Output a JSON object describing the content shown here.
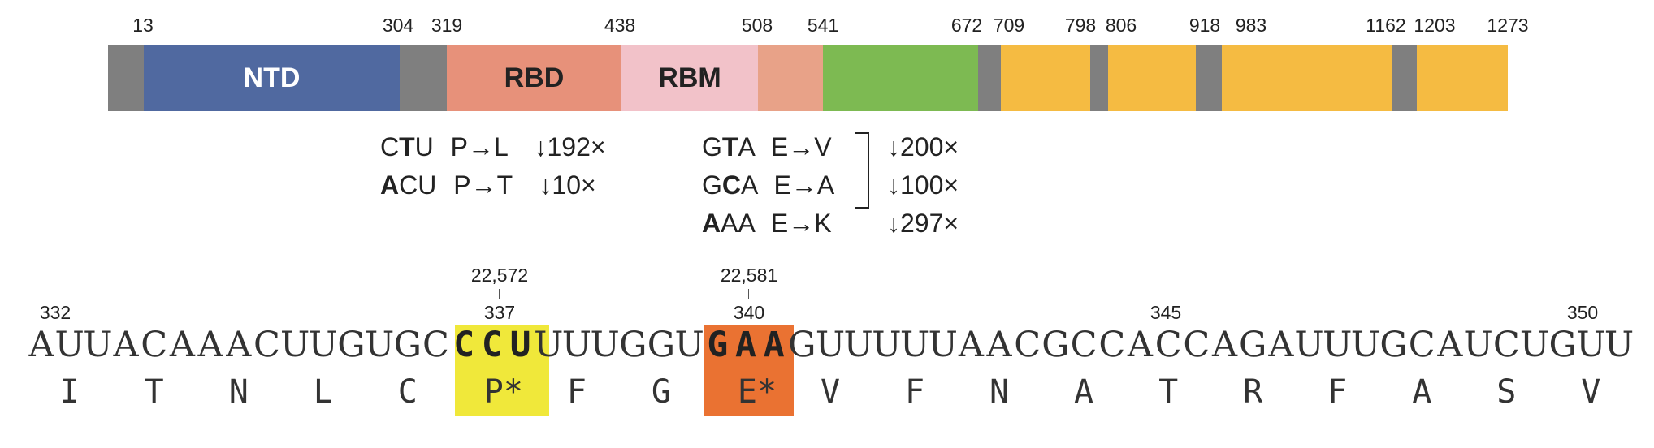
{
  "domain_bar": {
    "positions": [
      "13",
      "304",
      "319",
      "438",
      "508",
      "541",
      "672",
      "709",
      "798",
      "806",
      "918",
      "983",
      "1162",
      "1203",
      "1273"
    ],
    "labels": {
      "ntd": "NTD",
      "rbd": "RBD",
      "rbm": "RBM"
    },
    "colors": {
      "gap": "#7f7f7f",
      "ntd": "#5069a0",
      "rbd": "#e7917a",
      "rbm": "#f2c2c9",
      "rbd_tail": "#e8a288",
      "green": "#7dba52",
      "orange": "#f5bb42"
    }
  },
  "mutations": {
    "proline": [
      {
        "codon_bold": "",
        "codon_mid": "C",
        "codon_bold2": "T",
        "codon_end": "U",
        "change": "P→L",
        "effect": "↓192×"
      },
      {
        "codon_bold": "A",
        "codon_mid": "",
        "codon_bold2": "",
        "codon_end": "CU",
        "change": "P→T",
        "effect": "↓10×"
      }
    ],
    "glutamate": [
      {
        "codon_bold": "",
        "codon_mid": "G",
        "codon_bold2": "T",
        "codon_end": "A",
        "change": "E→V",
        "effect": "↓200×"
      },
      {
        "codon_bold": "",
        "codon_mid": "G",
        "codon_bold2": "C",
        "codon_end": "A",
        "change": "E→A",
        "effect": "↓100×"
      },
      {
        "codon_bold": "A",
        "codon_mid": "",
        "codon_bold2": "",
        "codon_end": "AA",
        "change": "E→K",
        "effect": "↓297×"
      }
    ]
  },
  "genome_coords": [
    "22,572",
    "22,581"
  ],
  "residue_numbers": [
    "332",
    "337",
    "340",
    "345",
    "350"
  ],
  "sequence": {
    "nucleotides": "AUUACAAACUUGUGCCCUUUUGGUGAAGUUUUUAACGCCACCAGAUUUGCAUCUGUU",
    "amino_acids": [
      "I",
      "T",
      "N",
      "L",
      "C",
      "P*",
      "F",
      "G",
      "E*",
      "V",
      "F",
      "N",
      "A",
      "T",
      "R",
      "F",
      "A",
      "S",
      "V"
    ],
    "highlight_codon_1": "CCU",
    "highlight_codon_2": "GAA",
    "highlight_color_1": "#f0e83a",
    "highlight_color_2": "#ea7232"
  }
}
